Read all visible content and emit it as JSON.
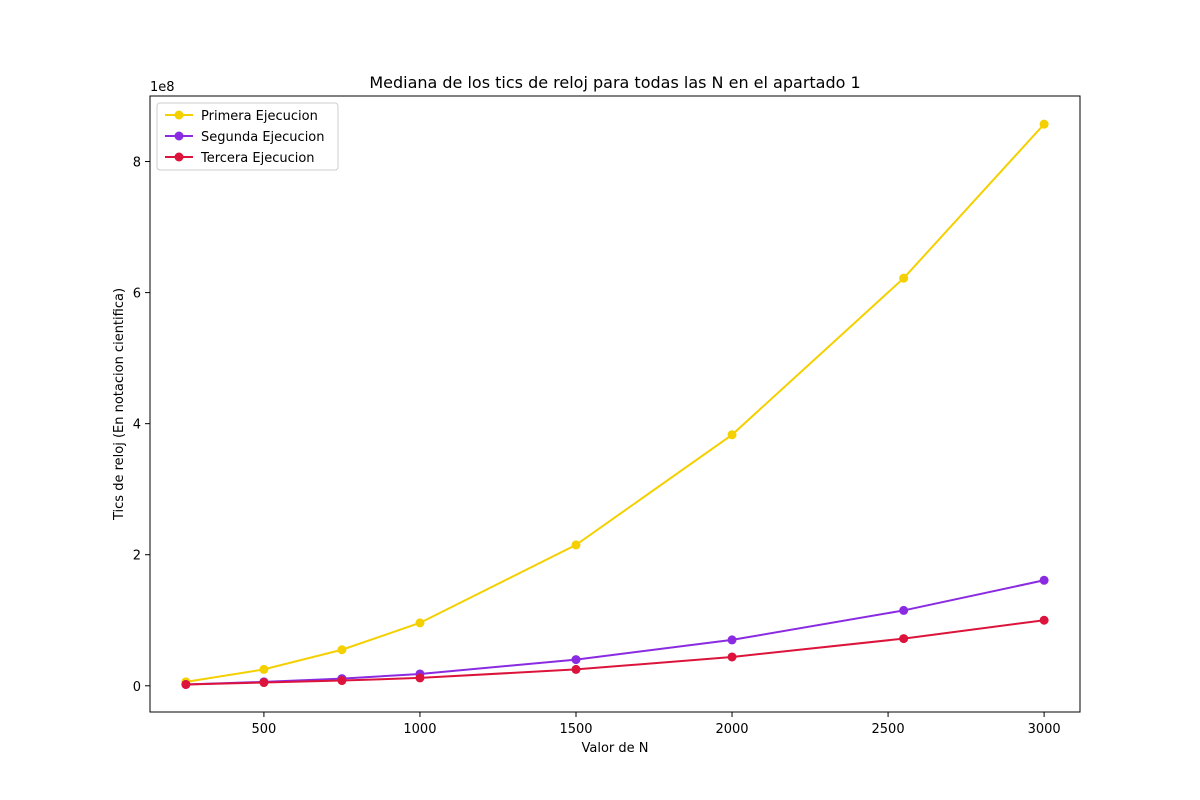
{
  "chart_data": {
    "type": "line",
    "title": "Mediana de los tics de reloj para todas las N en el apartado 1",
    "xlabel": "Valor de N",
    "ylabel": "Tics de reloj (En notacion cientifica)",
    "y_offset_label": "1e8",
    "xlim": [
      135,
      3115
    ],
    "ylim": [
      -0.4,
      9.0
    ],
    "y_scale": 100000000,
    "x_ticks": [
      500,
      1000,
      1500,
      2000,
      2500,
      3000
    ],
    "x_tick_labels": [
      "500",
      "1000",
      "1500",
      "2000",
      "2500",
      "3000"
    ],
    "y_ticks": [
      0,
      2,
      4,
      6,
      8
    ],
    "y_tick_labels": [
      "0",
      "2",
      "4",
      "6",
      "8"
    ],
    "grid": false,
    "legend_position": "upper left",
    "x": [
      250,
      500,
      750,
      1000,
      1500,
      2000,
      2550,
      3000
    ],
    "series": [
      {
        "name": "Primera Ejecucion",
        "color": "#f5d000",
        "values": [
          0.06,
          0.25,
          0.55,
          0.96,
          2.15,
          3.83,
          6.22,
          8.57
        ]
      },
      {
        "name": "Segunda Ejecucion",
        "color": "#8a2be2",
        "values": [
          0.02,
          0.06,
          0.11,
          0.18,
          0.4,
          0.7,
          1.15,
          1.61
        ]
      },
      {
        "name": "Tercera Ejecucion",
        "color": "#dc143c",
        "values": [
          0.02,
          0.05,
          0.08,
          0.12,
          0.25,
          0.44,
          0.72,
          1.0
        ]
      }
    ]
  }
}
